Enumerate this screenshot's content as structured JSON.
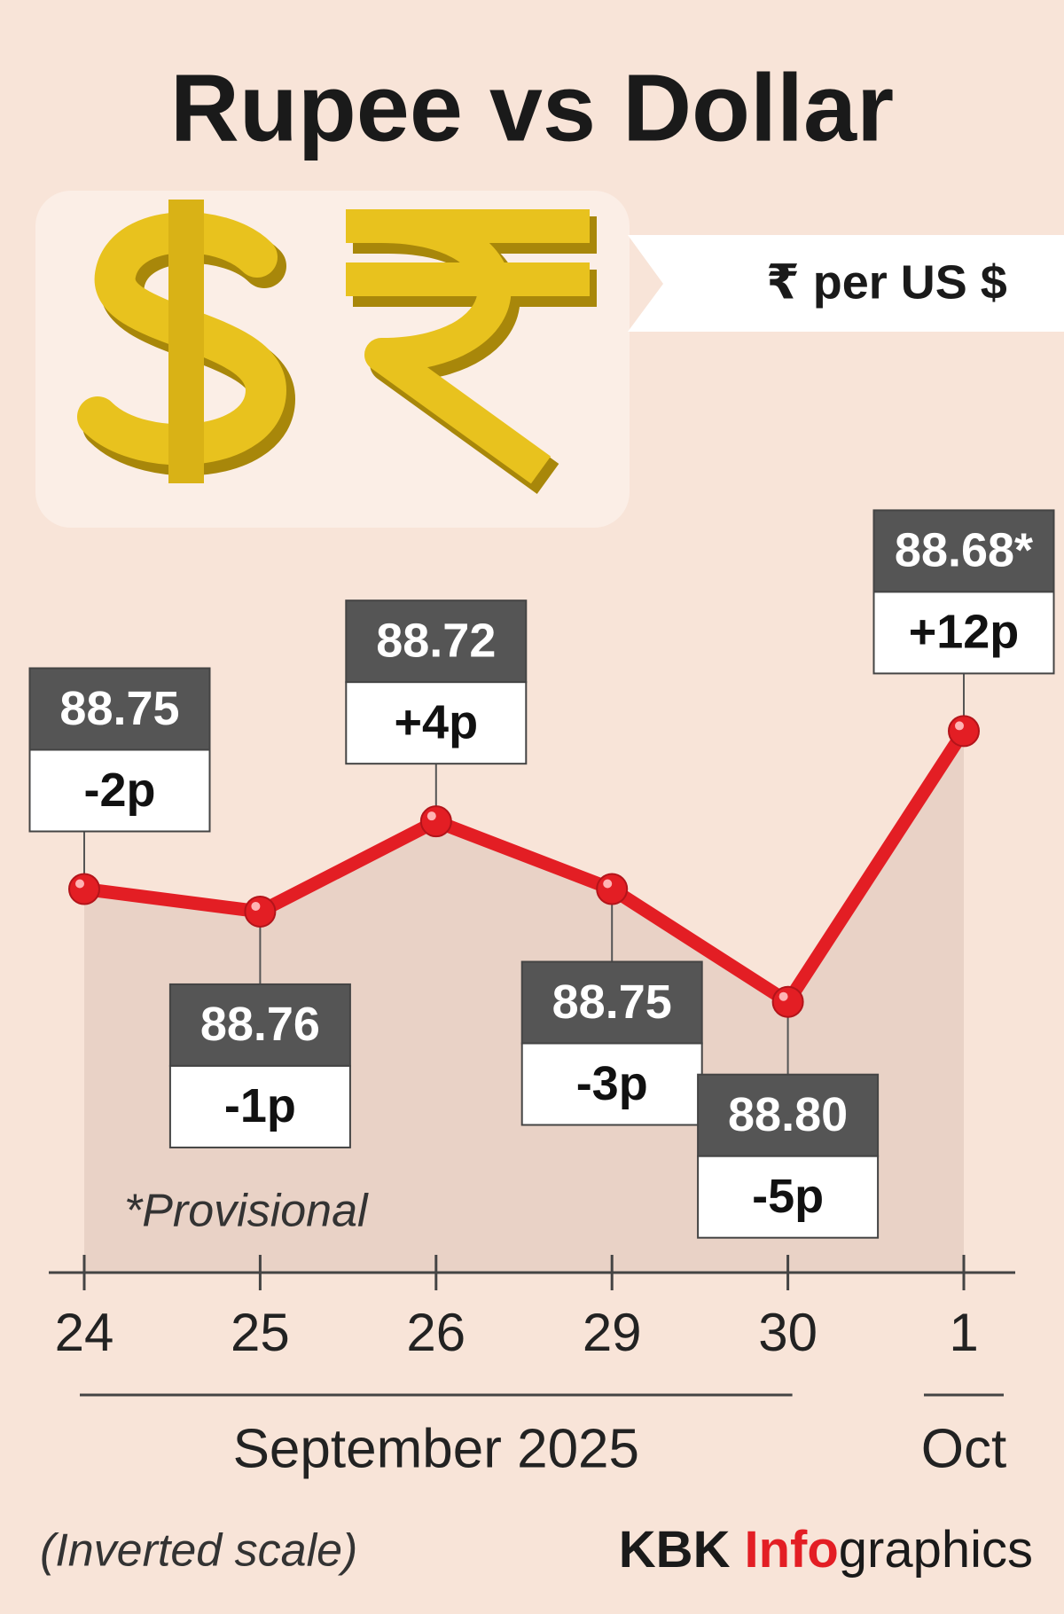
{
  "chart_data": {
    "type": "line",
    "title": "Rupee vs Dollar",
    "unit_label": "₹ per US $",
    "categories": [
      "24",
      "25",
      "26",
      "29",
      "30",
      "1"
    ],
    "groups": [
      {
        "label": "September 2025",
        "from": 0,
        "to": 4
      },
      {
        "label": "Oct",
        "from": 5,
        "to": 5
      }
    ],
    "values": [
      88.75,
      88.76,
      88.72,
      88.75,
      88.8,
      88.68
    ],
    "value_labels": [
      "88.75",
      "88.76",
      "88.72",
      "88.75",
      "88.80",
      "88.68*"
    ],
    "change_labels": [
      "-2p",
      "-1p",
      "+4p",
      "-3p",
      "-5p",
      "+12p"
    ],
    "color": "#e31e24",
    "ylim": [
      88.58,
      88.92
    ],
    "inverted": true,
    "note": "*Provisional",
    "scale_note": "(Inverted scale)",
    "credit": [
      "KBK",
      "Info",
      "graphics"
    ]
  }
}
